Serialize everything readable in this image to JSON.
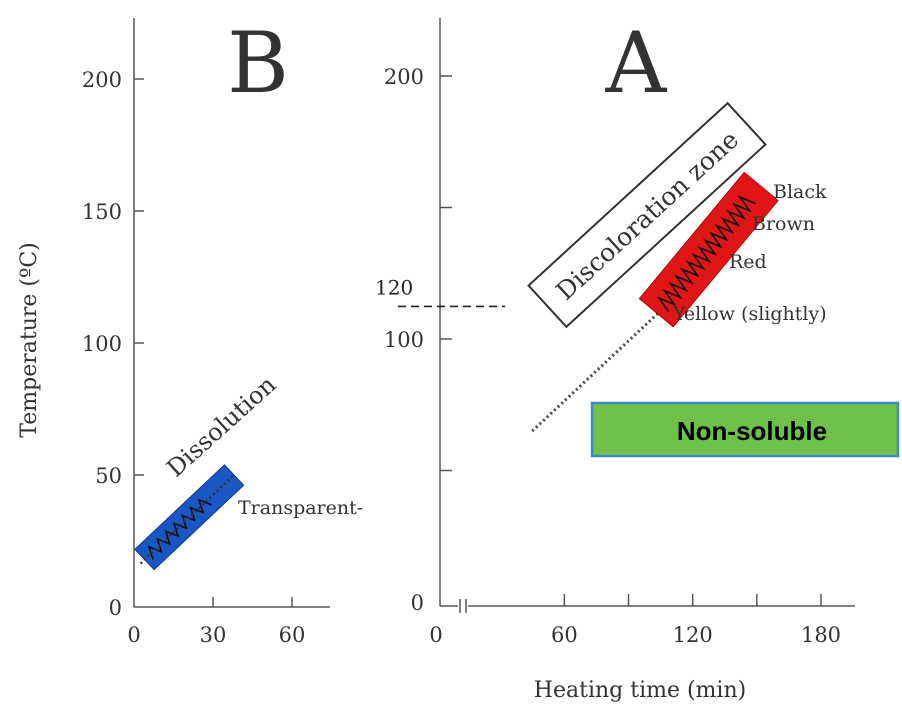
{
  "chart_data": [
    {
      "panel": "B",
      "type": "line",
      "panel_label": "B",
      "ylabel": "Temperature (ºC)",
      "xlim": [
        0,
        70
      ],
      "ylim": [
        0,
        220
      ],
      "x_ticks": [
        0,
        30,
        60
      ],
      "y_ticks": [
        0,
        50,
        100,
        150,
        200
      ],
      "series": [
        {
          "name": "Dissolution",
          "x": [
            4,
            38
          ],
          "y": [
            18,
            50
          ]
        }
      ],
      "annotations": {
        "band_label": "Dissolution",
        "state_label": "Transparent-"
      },
      "band_color": "#1a56c4"
    },
    {
      "panel": "A",
      "type": "line",
      "panel_label": "A",
      "xlabel": "Heating time (min)",
      "xlim": [
        0,
        195
      ],
      "ylim": [
        0,
        220
      ],
      "x_ticks": [
        0,
        60,
        120,
        180
      ],
      "y_ticks": [
        0,
        100,
        200
      ],
      "axis_break": true,
      "series": [
        {
          "name": "Discoloration zone",
          "x": [
            45,
            150
          ],
          "y": [
            65,
            155
          ]
        }
      ],
      "reference_line": {
        "y": 120,
        "label": "120"
      },
      "zone_label": "Discoloration zone",
      "color_labels": [
        "Black",
        "Brown",
        "Red",
        "Yellow (slightly)"
      ],
      "badge": {
        "text": "Non-soluble",
        "fill": "#6ec04a",
        "border": "#3f8bbf"
      },
      "band_color": "#e01515"
    }
  ]
}
